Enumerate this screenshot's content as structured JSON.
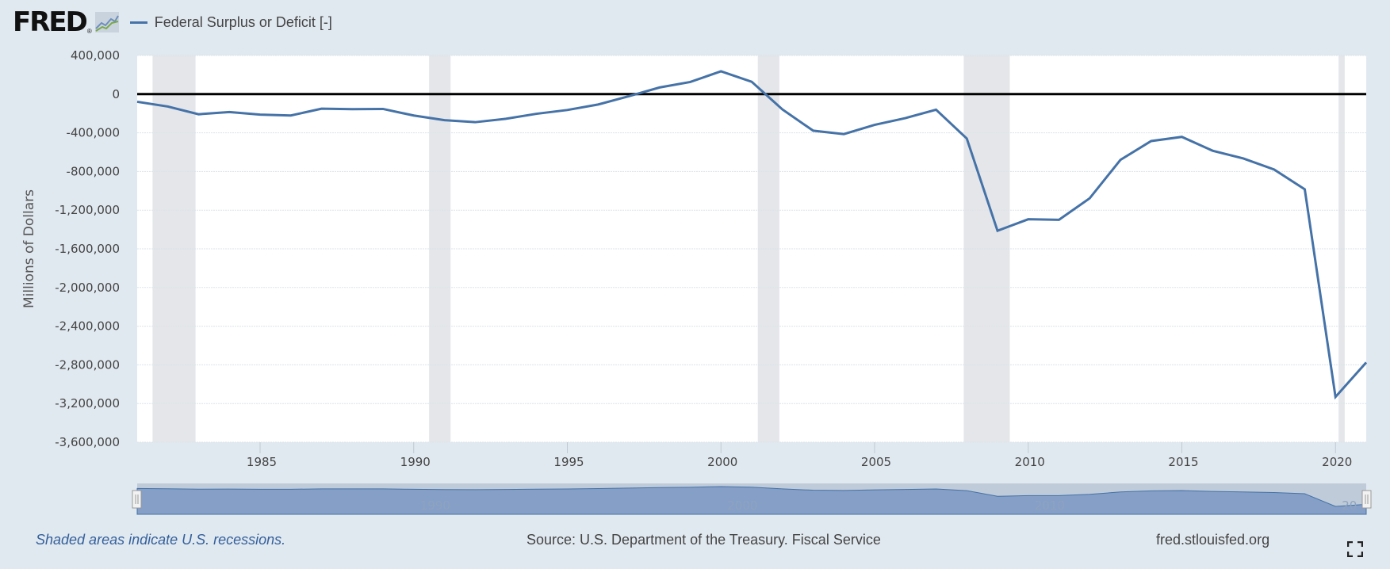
{
  "header": {
    "logo_text": "FRED",
    "logo_reg": "®",
    "legend_label": "Federal Surplus or Deficit [-]"
  },
  "colors": {
    "series": "#4572a7",
    "recession": "#e4e6e9",
    "background": "#e1e9f0",
    "navigator_fill": "#859fc7"
  },
  "footer": {
    "note": "Shaded areas indicate U.S. recessions.",
    "source": "Source: U.S. Department of the Treasury. Fiscal Service",
    "url": "fred.stlouisfed.org"
  },
  "chart_data": {
    "type": "line",
    "title": "Federal Surplus or Deficit [-]",
    "xlabel": "",
    "ylabel": "Millions of Dollars",
    "xlim": [
      1981,
      2021
    ],
    "ylim": [
      -3600000,
      400000
    ],
    "grid": true,
    "legend": "top-left",
    "y_ticks": [
      400000,
      0,
      -400000,
      -800000,
      -1200000,
      -1600000,
      -2000000,
      -2400000,
      -2800000,
      -3200000,
      -3600000
    ],
    "y_tick_labels": [
      "400,000",
      "0",
      "-400,000",
      "-800,000",
      "-1,200,000",
      "-1,600,000",
      "-2,000,000",
      "-2,400,000",
      "-2,800,000",
      "-3,200,000",
      "-3,600,000"
    ],
    "x_ticks": [
      1985,
      1990,
      1995,
      2000,
      2005,
      2010,
      2015,
      2020
    ],
    "x_tick_labels": [
      "1985",
      "1990",
      "1995",
      "2000",
      "2005",
      "2010",
      "2015",
      "2020"
    ],
    "navigator_labels": [
      {
        "year": 1990,
        "label": "1990"
      },
      {
        "year": 2000,
        "label": "2000"
      },
      {
        "year": 2010,
        "label": "2010"
      },
      {
        "year": 2020,
        "label": "20"
      }
    ],
    "recessions": [
      [
        1981.5,
        1982.9
      ],
      [
        1990.5,
        1991.2
      ],
      [
        2001.2,
        2001.9
      ],
      [
        2007.9,
        2009.4
      ],
      [
        2020.1,
        2020.3
      ]
    ],
    "series": [
      {
        "name": "Federal Surplus or Deficit [-]",
        "x": [
          1981,
          1982,
          1983,
          1984,
          1985,
          1986,
          1987,
          1988,
          1989,
          1990,
          1991,
          1992,
          1993,
          1994,
          1995,
          1996,
          1997,
          1998,
          1999,
          2000,
          2001,
          2002,
          2003,
          2004,
          2005,
          2006,
          2007,
          2008,
          2009,
          2010,
          2011,
          2012,
          2013,
          2014,
          2015,
          2016,
          2017,
          2018,
          2019,
          2020,
          2021
        ],
        "values": [
          -79000,
          -128000,
          -208000,
          -185000,
          -212000,
          -221000,
          -150000,
          -155000,
          -153000,
          -221000,
          -269000,
          -290000,
          -255000,
          -203000,
          -164000,
          -107000,
          -22000,
          69000,
          126000,
          236000,
          128000,
          -158000,
          -378000,
          -413000,
          -318000,
          -248000,
          -161000,
          -459000,
          -1413000,
          -1294000,
          -1300000,
          -1077000,
          -680000,
          -485000,
          -442000,
          -585000,
          -665000,
          -779000,
          -984000,
          -3132000,
          -2775000
        ]
      }
    ]
  }
}
